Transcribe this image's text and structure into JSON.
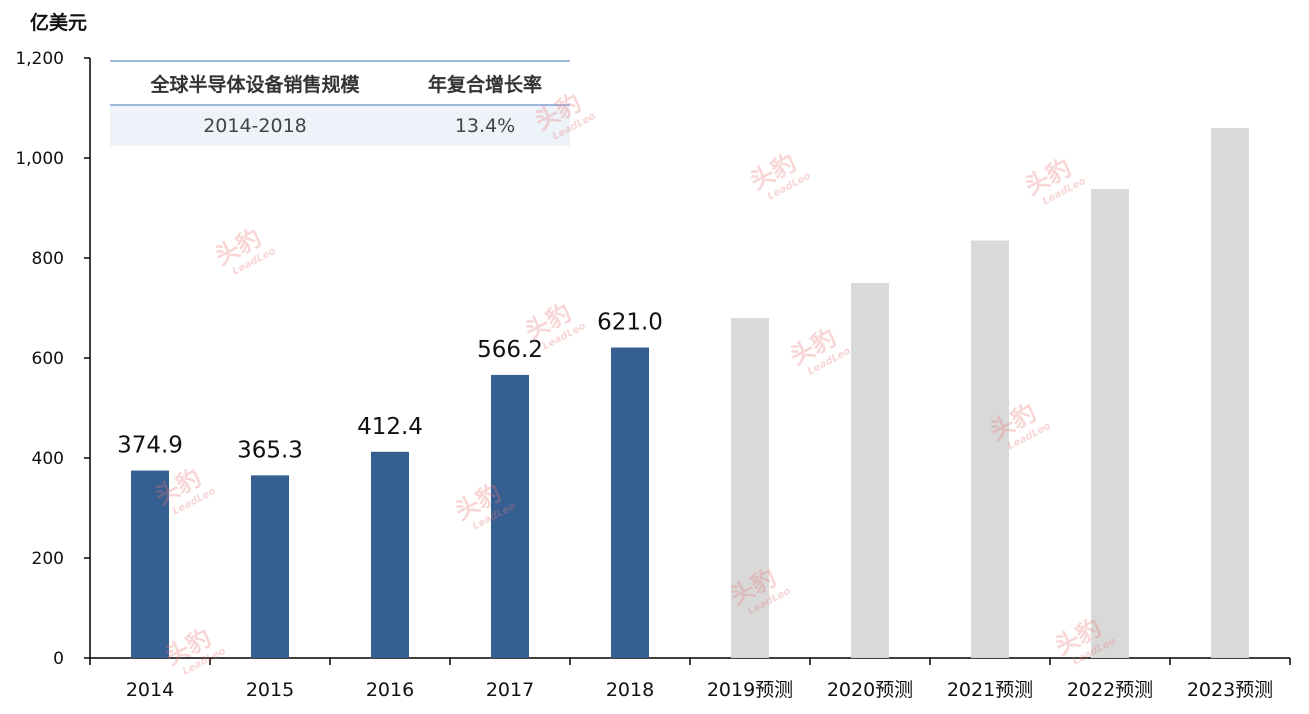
{
  "unit_label": "亿美元",
  "table": {
    "headers": [
      "全球半导体设备销售规模",
      "年复合增长率"
    ],
    "row": [
      "2014-2018",
      "13.4%"
    ]
  },
  "watermark": {
    "cn": "头豹",
    "en": "LeadLeo"
  },
  "colors": {
    "actual": "#365f91",
    "forecast": "#d9d9d9",
    "axis": "#000000"
  },
  "chart_data": {
    "type": "bar",
    "categories": [
      "2014",
      "2015",
      "2016",
      "2017",
      "2018",
      "2019预测",
      "2020预测",
      "2021预测",
      "2022预测",
      "2023预测"
    ],
    "series": [
      {
        "values": [
          374.9,
          365.3,
          412.4,
          566.2,
          621.0,
          680,
          750,
          835,
          938,
          1060
        ],
        "data_labels": [
          "374.9",
          "365.3",
          "412.4",
          "566.2",
          "621.0",
          "",
          "",
          "",
          "",
          ""
        ],
        "kind": [
          "actual",
          "actual",
          "actual",
          "actual",
          "actual",
          "forecast",
          "forecast",
          "forecast",
          "forecast",
          "forecast"
        ]
      }
    ],
    "ylim": [
      0,
      1200
    ],
    "yticks": [
      0,
      200,
      400,
      600,
      800,
      1000,
      1200
    ],
    "ytick_labels": [
      "0",
      "200",
      "400",
      "600",
      "800",
      "1,000",
      "1,200"
    ],
    "ylabel": "亿美元",
    "grid": false,
    "legend": "none"
  }
}
